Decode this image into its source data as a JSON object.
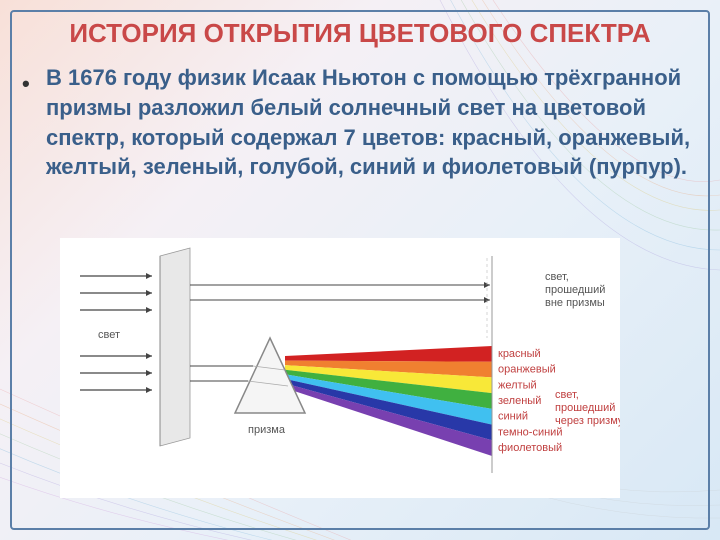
{
  "title_color": "#c94848",
  "body_color": "#3a5f8a",
  "title": "ИСТОРИЯ ОТКРЫТИЯ ЦВЕТОВОГО СПЕКТРА",
  "body": "В 1676 году физик Исаак Ньютон с помощью трёхгранной призмы разложил белый солнечный свет на цветовой спектр, который содержал 7 цветов: красный, оранжевый, желтый, зеленый, голубой, синий и фиолетовый (пурпур).",
  "diagram": {
    "label_light": "свет",
    "label_prism": "призма",
    "label_outside_1": "свет,",
    "label_outside_2": "прошедший",
    "label_outside_3": "вне призмы",
    "label_through_1": "свет,",
    "label_through_2": "прошедший",
    "label_through_3": "через призму",
    "color_1": "красный",
    "color_2": "оранжевый",
    "color_3": "желтый",
    "color_4": "зеленый",
    "color_5": "синий",
    "color_6": "темно-синий",
    "color_7": "фиолетовый",
    "spectrum_colors": [
      "#d22222",
      "#f08030",
      "#f8e838",
      "#40b040",
      "#40c0f0",
      "#2838a8",
      "#7840b0"
    ],
    "screen_color": "#e8e8e8",
    "prism_fill": "#f5f5f5",
    "prism_stroke": "#888888",
    "line_color": "#444444"
  }
}
